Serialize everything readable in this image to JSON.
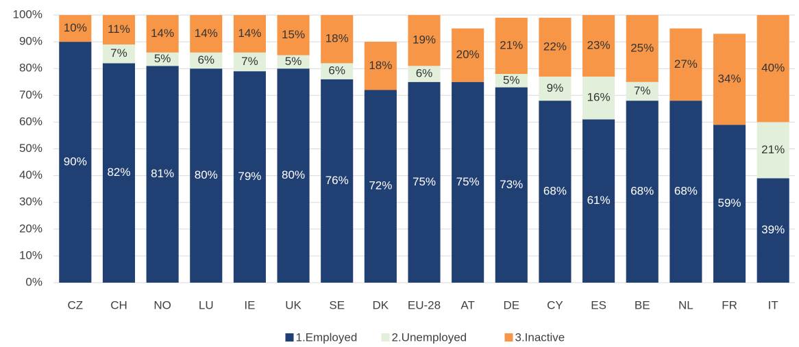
{
  "chart_data": {
    "type": "stacked_bar",
    "categories": [
      "CZ",
      "CH",
      "NO",
      "LU",
      "IE",
      "UK",
      "SE",
      "DK",
      "EU-28",
      "AT",
      "DE",
      "CY",
      "ES",
      "BE",
      "NL",
      "FR",
      "IT"
    ],
    "series": [
      {
        "name": "1.Employed",
        "color": "#203f73",
        "label_color": "#ffffff",
        "values": [
          90,
          82,
          81,
          80,
          79,
          80,
          76,
          72,
          75,
          75,
          73,
          68,
          61,
          68,
          68,
          59,
          39
        ],
        "value_labels": [
          "90%",
          "82%",
          "81%",
          "80%",
          "79%",
          "80%",
          "76%",
          "72%",
          "75%",
          "75%",
          "73%",
          "68%",
          "61%",
          "68%",
          "68%",
          "59%",
          "39%"
        ]
      },
      {
        "name": "2.Unemployed",
        "color": "#e2efda",
        "label_color": "#333333",
        "values": [
          null,
          7,
          5,
          6,
          7,
          5,
          6,
          null,
          6,
          null,
          5,
          9,
          16,
          7,
          null,
          null,
          21
        ],
        "value_labels": [
          null,
          "7%",
          "5%",
          "6%",
          "7%",
          "5%",
          "6%",
          null,
          "6%",
          null,
          "5%",
          "9%",
          "16%",
          "7%",
          null,
          null,
          "21%"
        ]
      },
      {
        "name": "3.Inactive",
        "color": "#f79646",
        "label_color": "#333333",
        "values": [
          10,
          11,
          14,
          14,
          14,
          15,
          18,
          18,
          19,
          20,
          21,
          22,
          23,
          25,
          27,
          34,
          40
        ],
        "value_labels": [
          "10%",
          "11%",
          "14%",
          "14%",
          "14%",
          "15%",
          "18%",
          "18%",
          "19%",
          "20%",
          "21%",
          "22%",
          "23%",
          "25%",
          "27%",
          "34%",
          "40%"
        ]
      }
    ],
    "ylim": [
      0,
      100
    ],
    "yticks": [
      {
        "value": 0,
        "label": "0%"
      },
      {
        "value": 10,
        "label": "10%"
      },
      {
        "value": 20,
        "label": "20%"
      },
      {
        "value": 30,
        "label": "30%"
      },
      {
        "value": 40,
        "label": "40%"
      },
      {
        "value": 50,
        "label": "50%"
      },
      {
        "value": 60,
        "label": "60%"
      },
      {
        "value": 70,
        "label": "70%"
      },
      {
        "value": 80,
        "label": "80%"
      },
      {
        "value": 90,
        "label": "90%"
      },
      {
        "value": 100,
        "label": "100%"
      }
    ],
    "grid": true,
    "legend": "bottom"
  }
}
